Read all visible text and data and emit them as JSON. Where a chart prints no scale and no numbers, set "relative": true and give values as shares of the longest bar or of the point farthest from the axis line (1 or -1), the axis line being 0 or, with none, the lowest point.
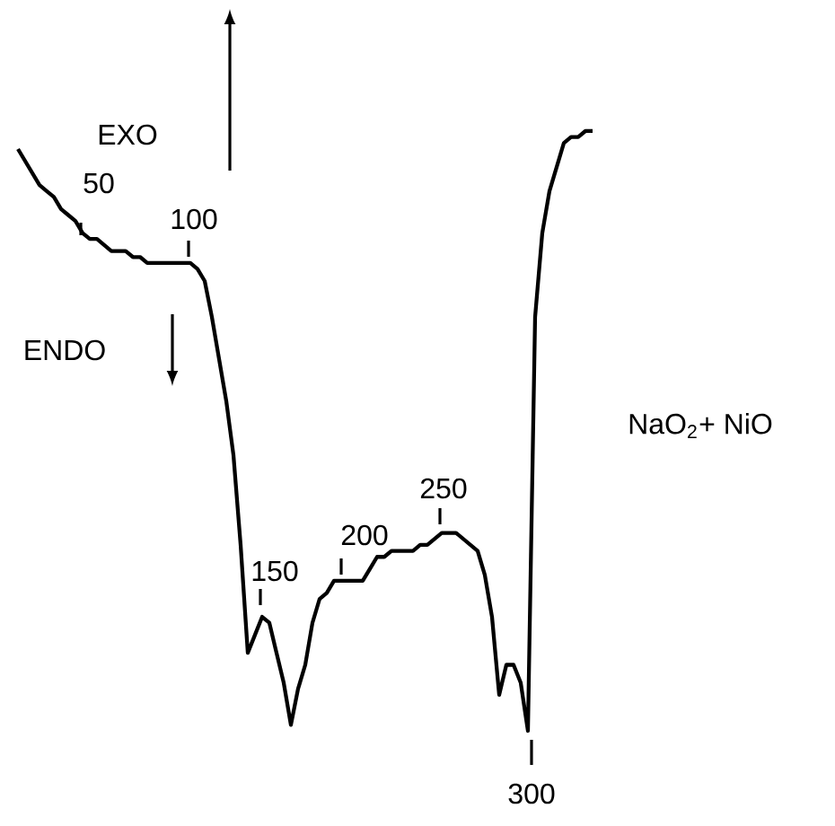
{
  "chart_data": {
    "type": "line",
    "relative": true,
    "line_style": "solid",
    "marker": "none",
    "categories": [
      null,
      null,
      null,
      null,
      null,
      null,
      null,
      null,
      null,
      null,
      null,
      null,
      null,
      null,
      null,
      null,
      null,
      null,
      null,
      null,
      null,
      null,
      null,
      null,
      null,
      null,
      null,
      null,
      null,
      null,
      null,
      null,
      null,
      null,
      null,
      null,
      null,
      null,
      null,
      null,
      null,
      null,
      null,
      null,
      null,
      null,
      null,
      null,
      null,
      null,
      null,
      null,
      null,
      null,
      null,
      null,
      null,
      null,
      null,
      null,
      null,
      null,
      null,
      null,
      null,
      null,
      null,
      null,
      null,
      null,
      null,
      null,
      null,
      null,
      null,
      null,
      null,
      null,
      null,
      null,
      null
    ],
    "series": [
      {
        "color": "#000000",
        "values": [
          0.97,
          0.95,
          0.93,
          0.91,
          0.9,
          0.89,
          0.87,
          0.86,
          0.85,
          0.83,
          0.82,
          0.82,
          0.81,
          0.8,
          0.8,
          0.8,
          0.79,
          0.79,
          0.78,
          0.78,
          0.78,
          0.78,
          0.78,
          0.78,
          0.78,
          0.77,
          0.75,
          0.69,
          0.62,
          0.55,
          0.46,
          0.31,
          0.13,
          0.16,
          0.19,
          0.18,
          0.13,
          0.08,
          0.01,
          0.07,
          0.11,
          0.18,
          0.22,
          0.23,
          0.25,
          0.25,
          0.25,
          0.25,
          0.25,
          0.27,
          0.29,
          0.29,
          0.3,
          0.3,
          0.3,
          0.3,
          0.31,
          0.31,
          0.32,
          0.33,
          0.33,
          0.33,
          0.32,
          0.31,
          0.3,
          0.26,
          0.19,
          0.06,
          0.11,
          0.11,
          0.08,
          0,
          0.69,
          0.83,
          0.9,
          0.94,
          0.98,
          0.99,
          0.99,
          1.0,
          1
        ]
      }
    ],
    "annotations": [
      "50",
      "100",
      "150",
      "200",
      "250",
      "300",
      "EXO",
      "ENDO",
      "NaO$_{2}$+ NiO"
    ]
  }
}
